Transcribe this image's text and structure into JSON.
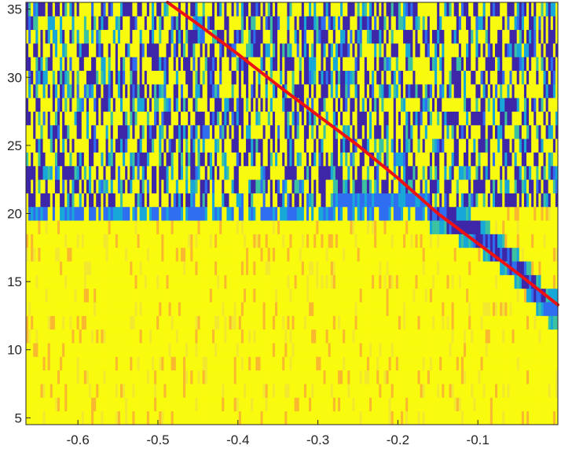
{
  "chart_data": {
    "type": "heatmap",
    "title": "",
    "xlabel": "",
    "ylabel": "",
    "xlim": [
      -0.665,
      0.0
    ],
    "ylim": [
      4.5,
      35.5
    ],
    "x_ticks": [
      -0.6,
      -0.5,
      -0.4,
      -0.3,
      -0.2,
      -0.1
    ],
    "x_tick_labels": [
      "-0.6",
      "-0.5",
      "-0.4",
      "-0.3",
      "-0.2",
      "-0.1"
    ],
    "y_ticks": [
      5,
      10,
      15,
      20,
      25,
      30,
      35
    ],
    "y_tick_labels": [
      "5",
      "10",
      "15",
      "20",
      "25",
      "30",
      "35"
    ],
    "grid": false,
    "colormap": [
      "#3e26a8",
      "#2f6ef0",
      "#17a8d8",
      "#3cc2a0",
      "#a8c23a",
      "#f9b82f",
      "#f2e830",
      "#f9fb0e"
    ],
    "description_levels": {
      "low": "#3e26a8",
      "high": "#f9fb0e"
    },
    "bands": [
      {
        "y_from": 20.5,
        "y_to": 35.5,
        "pattern": "noisy"
      },
      {
        "y_from": 4.5,
        "y_to": 20.5,
        "pattern": "mostly-high"
      }
    ],
    "series": [
      {
        "type": "line",
        "color": "#ee1111",
        "x": [
          -0.488,
          -0.45,
          -0.4,
          -0.35,
          -0.3,
          -0.25,
          -0.2,
          -0.15,
          -0.1,
          -0.05,
          0.0
        ],
        "y": [
          35.5,
          33.9,
          31.7,
          29.4,
          27.2,
          25.0,
          22.6,
          20.0,
          17.8,
          15.6,
          13.3
        ]
      }
    ],
    "ridge": {
      "x": [
        -0.65,
        -0.6,
        -0.5,
        -0.4,
        -0.3,
        -0.2,
        -0.15,
        -0.1,
        -0.05,
        -0.01
      ],
      "y": [
        20.0,
        20.0,
        20.0,
        20.0,
        20.0,
        21.0,
        20.0,
        18.5,
        16.0,
        13.0
      ]
    }
  }
}
